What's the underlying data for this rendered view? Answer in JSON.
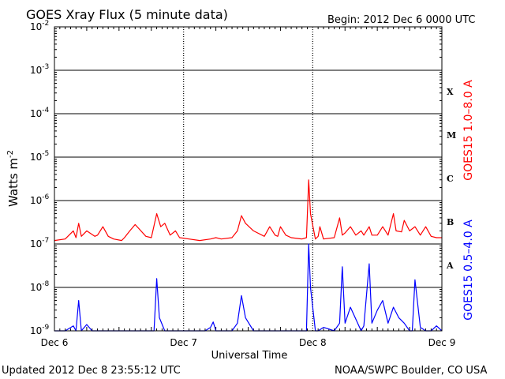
{
  "chart_data": {
    "type": "line",
    "title": "GOES Xray Flux (5 minute data)",
    "begin_text": "Begin:  2012 Dec 6 0000 UTC",
    "xlabel": "Universal Time",
    "ylabel": "Watts m",
    "ylabel_sup": "-2",
    "yscale": "log",
    "ylim": [
      1e-09,
      0.01
    ],
    "xlim": [
      "2012-12-06 00:00",
      "2012-12-09 00:00"
    ],
    "x_ticks": [
      "Dec 6",
      "Dec 7",
      "Dec 8",
      "Dec 9"
    ],
    "y_ticks": [
      {
        "base": "10",
        "exp": "-2",
        "value": 0.01
      },
      {
        "base": "10",
        "exp": "-3",
        "value": 0.001
      },
      {
        "base": "10",
        "exp": "-4",
        "value": 0.0001
      },
      {
        "base": "10",
        "exp": "-5",
        "value": 1e-05
      },
      {
        "base": "10",
        "exp": "-6",
        "value": 1e-06
      },
      {
        "base": "10",
        "exp": "-7",
        "value": 1e-07
      },
      {
        "base": "10",
        "exp": "-8",
        "value": 1e-08
      },
      {
        "base": "10",
        "exp": "-9",
        "value": 1e-09
      }
    ],
    "flare_classes": [
      {
        "label": "X",
        "value": 0.00032
      },
      {
        "label": "M",
        "value": 3.2e-05
      },
      {
        "label": "C",
        "value": 3.2e-06
      },
      {
        "label": "B",
        "value": 3.2e-07
      },
      {
        "label": "A",
        "value": 3.2e-08
      }
    ],
    "grid": true,
    "series": [
      {
        "name": "GOES15 1.0–8.0 A",
        "color": "#ff0000",
        "x": [
          "2012-12-06 00:00",
          "2012-12-06 02:00",
          "2012-12-06 03:30",
          "2012-12-06 04:00",
          "2012-12-06 04:30",
          "2012-12-06 05:00",
          "2012-12-06 06:00",
          "2012-12-06 07:30",
          "2012-12-06 08:00",
          "2012-12-06 09:00",
          "2012-12-06 10:00",
          "2012-12-06 11:00",
          "2012-12-06 12:30",
          "2012-12-06 13:00",
          "2012-12-06 14:00",
          "2012-12-06 15:00",
          "2012-12-06 17:00",
          "2012-12-06 18:00",
          "2012-12-06 19:00",
          "2012-12-06 19:45",
          "2012-12-06 20:30",
          "2012-12-06 21:30",
          "2012-12-06 22:30",
          "2012-12-06 23:15",
          "2012-12-07 01:00",
          "2012-12-07 03:00",
          "2012-12-07 05:00",
          "2012-12-07 06:00",
          "2012-12-07 07:00",
          "2012-12-07 09:00",
          "2012-12-07 10:00",
          "2012-12-07 10:45",
          "2012-12-07 11:30",
          "2012-12-07 13:00",
          "2012-12-07 15:00",
          "2012-12-07 16:00",
          "2012-12-07 17:00",
          "2012-12-07 17:30",
          "2012-12-07 18:00",
          "2012-12-07 19:00",
          "2012-12-07 20:00",
          "2012-12-07 22:00",
          "2012-12-07 22:50",
          "2012-12-07 23:15",
          "2012-12-07 23:35",
          "2012-12-08 00:30",
          "2012-12-08 01:00",
          "2012-12-08 01:20",
          "2012-12-08 02:00",
          "2012-12-08 04:00",
          "2012-12-08 05:00",
          "2012-12-08 05:30",
          "2012-12-08 06:00",
          "2012-12-08 07:00",
          "2012-12-08 08:00",
          "2012-12-08 09:00",
          "2012-12-08 09:30",
          "2012-12-08 10:30",
          "2012-12-08 11:00",
          "2012-12-08 12:00",
          "2012-12-08 13:00",
          "2012-12-08 14:00",
          "2012-12-08 15:00",
          "2012-12-08 15:30",
          "2012-12-08 16:30",
          "2012-12-08 17:00",
          "2012-12-08 18:00",
          "2012-12-08 19:00",
          "2012-12-08 20:00",
          "2012-12-08 21:00",
          "2012-12-08 22:00",
          "2012-12-08 23:00",
          "2012-12-09 00:00"
        ],
        "values": [
          1.2e-07,
          1.3e-07,
          2e-07,
          1.4e-07,
          3e-07,
          1.5e-07,
          2e-07,
          1.5e-07,
          1.6e-07,
          2.5e-07,
          1.5e-07,
          1.3e-07,
          1.2e-07,
          1.4e-07,
          2e-07,
          2.8e-07,
          1.5e-07,
          1.4e-07,
          5e-07,
          2.5e-07,
          3e-07,
          1.6e-07,
          2e-07,
          1.4e-07,
          1.3e-07,
          1.2e-07,
          1.3e-07,
          1.4e-07,
          1.3e-07,
          1.4e-07,
          2e-07,
          4.5e-07,
          3e-07,
          2e-07,
          1.5e-07,
          2.5e-07,
          1.6e-07,
          1.5e-07,
          2.5e-07,
          1.6e-07,
          1.4e-07,
          1.3e-07,
          1.4e-07,
          3e-06,
          5e-07,
          1.3e-07,
          1.5e-07,
          2.5e-07,
          1.3e-07,
          1.4e-07,
          4e-07,
          1.6e-07,
          1.8e-07,
          2.5e-07,
          1.6e-07,
          2e-07,
          1.6e-07,
          2.5e-07,
          1.6e-07,
          1.6e-07,
          2.5e-07,
          1.6e-07,
          5e-07,
          2e-07,
          1.9e-07,
          3.5e-07,
          2e-07,
          2.5e-07,
          1.6e-07,
          2.5e-07,
          1.5e-07,
          1.4e-07,
          1.4e-07
        ]
      },
      {
        "name": "GOES15 0.5–4.0 A",
        "color": "#0000ff",
        "x": [
          "2012-12-06 00:00",
          "2012-12-06 02:00",
          "2012-12-06 03:30",
          "2012-12-06 04:00",
          "2012-12-06 04:30",
          "2012-12-06 05:00",
          "2012-12-06 06:00",
          "2012-12-06 07:00",
          "2012-12-06 08:00",
          "2012-12-06 12:00",
          "2012-12-06 16:00",
          "2012-12-06 18:30",
          "2012-12-06 19:00",
          "2012-12-06 19:30",
          "2012-12-06 20:30",
          "2012-12-06 22:00",
          "2012-12-07 00:00",
          "2012-12-07 04:00",
          "2012-12-07 05:00",
          "2012-12-07 05:30",
          "2012-12-07 06:00",
          "2012-12-07 07:00",
          "2012-12-07 09:00",
          "2012-12-07 10:00",
          "2012-12-07 10:45",
          "2012-12-07 11:30",
          "2012-12-07 13:00",
          "2012-12-07 15:00",
          "2012-12-07 18:00",
          "2012-12-07 20:00",
          "2012-12-07 22:00",
          "2012-12-07 22:50",
          "2012-12-07 23:15",
          "2012-12-07 23:35",
          "2012-12-08 00:30",
          "2012-12-08 01:00",
          "2012-12-08 02:00",
          "2012-12-08 04:00",
          "2012-12-08 05:00",
          "2012-12-08 05:30",
          "2012-12-08 06:00",
          "2012-12-08 07:00",
          "2012-12-08 09:00",
          "2012-12-08 09:30",
          "2012-12-08 10:30",
          "2012-12-08 11:00",
          "2012-12-08 12:00",
          "2012-12-08 13:00",
          "2012-12-08 14:00",
          "2012-12-08 15:00",
          "2012-12-08 16:00",
          "2012-12-08 17:00",
          "2012-12-08 18:00",
          "2012-12-08 18:30",
          "2012-12-08 19:00",
          "2012-12-08 20:00",
          "2012-12-08 21:00",
          "2012-12-08 22:00",
          "2012-12-08 23:00",
          "2012-12-09 00:00"
        ],
        "values": [
          9e-10,
          9e-10,
          1.3e-09,
          1e-09,
          5e-09,
          1e-09,
          1.4e-09,
          1e-09,
          9e-10,
          9e-10,
          9e-10,
          9e-10,
          1.6e-08,
          2e-09,
          1e-09,
          9e-10,
          9e-10,
          9e-10,
          1.2e-09,
          1.6e-09,
          9e-10,
          9e-10,
          9e-10,
          1.5e-09,
          6.5e-09,
          2e-09,
          1e-09,
          9e-10,
          1e-09,
          9e-10,
          9e-10,
          9e-10,
          1e-07,
          1e-08,
          9e-10,
          1e-09,
          1.2e-09,
          9e-10,
          1.5e-09,
          3e-08,
          1.5e-09,
          3.5e-09,
          9e-10,
          1.3e-09,
          3.5e-08,
          1.5e-09,
          3e-09,
          5e-09,
          1.5e-09,
          3.5e-09,
          2e-09,
          1.5e-09,
          9e-10,
          1e-09,
          1.5e-08,
          1.2e-09,
          9e-10,
          1e-09,
          1.3e-09,
          9e-10
        ]
      }
    ],
    "legend_placement": "right (vertical)"
  },
  "footer": {
    "updated": "Updated 2012 Dec  8 23:55:12 UTC",
    "source": "NOAA/SWPC Boulder, CO USA"
  }
}
